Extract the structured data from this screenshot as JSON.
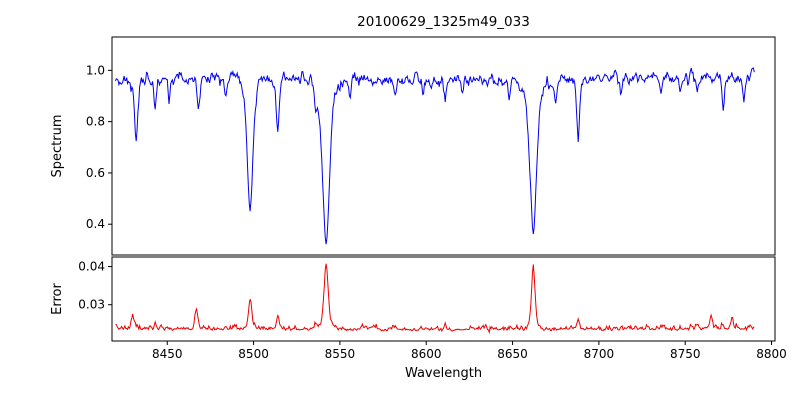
{
  "figure": {
    "background": "#ffffff",
    "axis_color": "#000000"
  },
  "chart_data": [
    {
      "type": "line",
      "panel": "spectrum",
      "title": "20100629_1325m49_033",
      "ylabel": "Spectrum",
      "xlabel": "",
      "legend": null,
      "grid": false,
      "color": "#0000ee",
      "xlim": [
        8418,
        8802
      ],
      "ylim": [
        0.28,
        1.13
      ],
      "yticks": [
        0.4,
        0.6,
        0.8,
        1.0
      ],
      "ytick_labels": [
        "0.4",
        "0.6",
        "0.8",
        "1.0"
      ],
      "x_start": 8420,
      "x_end": 8790,
      "x_step": 0.5,
      "continuum": 0.97,
      "continuum_wave": {
        "amp": 0.008,
        "period": 260
      },
      "noise_sigma": 0.011,
      "noise_ar": 0.5,
      "seed": 42,
      "absorption_lines": [
        {
          "center": 8432,
          "depth": 0.27,
          "width": 1.0
        },
        {
          "center": 8443,
          "depth": 0.13,
          "width": 0.8
        },
        {
          "center": 8451,
          "depth": 0.1,
          "width": 0.7
        },
        {
          "center": 8468,
          "depth": 0.14,
          "width": 0.8
        },
        {
          "center": 8484,
          "depth": 0.09,
          "width": 0.7
        },
        {
          "center": 8498,
          "depth": 0.53,
          "width": 1.8
        },
        {
          "center": 8514,
          "depth": 0.21,
          "width": 0.9
        },
        {
          "center": 8536,
          "depth": 0.09,
          "width": 0.7
        },
        {
          "center": 8542,
          "depth": 0.67,
          "width": 2.2
        },
        {
          "center": 8556,
          "depth": 0.07,
          "width": 0.7
        },
        {
          "center": 8582,
          "depth": 0.08,
          "width": 0.7
        },
        {
          "center": 8598,
          "depth": 0.06,
          "width": 0.6
        },
        {
          "center": 8611,
          "depth": 0.1,
          "width": 0.7
        },
        {
          "center": 8621,
          "depth": 0.06,
          "width": 0.6
        },
        {
          "center": 8648,
          "depth": 0.08,
          "width": 0.7
        },
        {
          "center": 8662,
          "depth": 0.62,
          "width": 2.0
        },
        {
          "center": 8675,
          "depth": 0.09,
          "width": 0.7
        },
        {
          "center": 8688,
          "depth": 0.26,
          "width": 0.9
        },
        {
          "center": 8713,
          "depth": 0.06,
          "width": 0.6
        },
        {
          "center": 8736,
          "depth": 0.07,
          "width": 0.7
        },
        {
          "center": 8747,
          "depth": 0.05,
          "width": 0.6
        },
        {
          "center": 8757,
          "depth": 0.07,
          "width": 0.7
        },
        {
          "center": 8772,
          "depth": 0.13,
          "width": 0.8
        },
        {
          "center": 8784,
          "depth": 0.08,
          "width": 0.6
        }
      ]
    },
    {
      "type": "line",
      "panel": "error",
      "title": "",
      "ylabel": "Error",
      "xlabel": "Wavelength",
      "legend": null,
      "grid": false,
      "color": "#ee0000",
      "xlim": [
        8418,
        8802
      ],
      "ylim": [
        0.0205,
        0.0425
      ],
      "yticks": [
        0.03,
        0.04
      ],
      "ytick_labels": [
        "0.03",
        "0.04"
      ],
      "xticks": [
        8450,
        8500,
        8550,
        8600,
        8650,
        8700,
        8750,
        8800
      ],
      "xtick_labels": [
        "8450",
        "8500",
        "8550",
        "8600",
        "8650",
        "8700",
        "8750",
        "8800"
      ],
      "x_start": 8420,
      "x_end": 8790,
      "x_step": 0.5,
      "baseline": 0.0237,
      "noise_sigma": 0.00032,
      "noise_ar": 0.5,
      "seed": 7,
      "peaks": [
        {
          "center": 8430,
          "amp": 0.0033,
          "width": 0.9
        },
        {
          "center": 8443,
          "amp": 0.0014,
          "width": 0.7
        },
        {
          "center": 8467,
          "amp": 0.0046,
          "width": 0.8
        },
        {
          "center": 8484,
          "amp": 0.001,
          "width": 0.6
        },
        {
          "center": 8498,
          "amp": 0.0078,
          "width": 1.0
        },
        {
          "center": 8514,
          "amp": 0.0034,
          "width": 0.8
        },
        {
          "center": 8536,
          "amp": 0.001,
          "width": 0.6
        },
        {
          "center": 8542,
          "amp": 0.0168,
          "width": 1.3
        },
        {
          "center": 8582,
          "amp": 0.0008,
          "width": 0.6
        },
        {
          "center": 8611,
          "amp": 0.001,
          "width": 0.6
        },
        {
          "center": 8662,
          "amp": 0.0165,
          "width": 1.1
        },
        {
          "center": 8688,
          "amp": 0.0026,
          "width": 0.8
        },
        {
          "center": 8717,
          "amp": 0.0008,
          "width": 0.6
        },
        {
          "center": 8736,
          "amp": 0.0009,
          "width": 0.6
        },
        {
          "center": 8757,
          "amp": 0.0012,
          "width": 0.7
        },
        {
          "center": 8765,
          "amp": 0.0028,
          "width": 0.8
        },
        {
          "center": 8777,
          "amp": 0.003,
          "width": 0.8
        }
      ]
    }
  ]
}
